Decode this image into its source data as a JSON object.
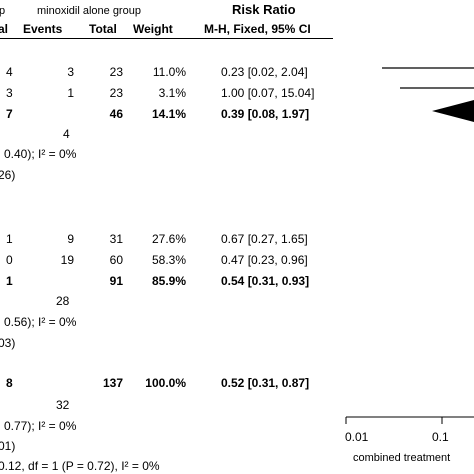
{
  "header": {
    "group_label": "minoxidil alone group",
    "left_fragment": "p",
    "col_left_fragment": "al",
    "col_events": "Events",
    "col_total": "Total",
    "col_weight": "Weight",
    "risk_ratio": "Risk Ratio",
    "method": "M-H, Fixed, 95% CI"
  },
  "subgroup1": {
    "rows": [
      {
        "left": "4",
        "events": "3",
        "total": "23",
        "weight": "11.0%",
        "ci": "0.23 [0.02, 2.04]"
      },
      {
        "left": "3",
        "events": "1",
        "total": "23",
        "weight": "3.1%",
        "ci": "1.00 [0.07, 15.04]"
      }
    ],
    "subtotal": {
      "left": "7",
      "total": "46",
      "weight": "14.1%",
      "ci": "0.39 [0.08, 1.97]"
    },
    "events_total": "4",
    "het": "0.40); I² = 0%",
    "effect": "26)"
  },
  "subgroup2": {
    "rows": [
      {
        "left": "1",
        "events": "9",
        "total": "31",
        "weight": "27.6%",
        "ci": "0.67 [0.27, 1.65]"
      },
      {
        "left": "0",
        "events": "19",
        "total": "60",
        "weight": "58.3%",
        "ci": "0.47 [0.23, 0.96]"
      }
    ],
    "subtotal": {
      "left": "1",
      "total": "91",
      "weight": "85.9%",
      "ci": "0.54 [0.31, 0.93]"
    },
    "events_total": "28",
    "het": "0.56); I² = 0%",
    "effect": "03)"
  },
  "overall": {
    "left": "8",
    "total": "137",
    "weight": "100.0%",
    "ci": "0.52 [0.31, 0.87]",
    "events_total": "32",
    "het": "0.77); I² = 0%",
    "effect": "01)",
    "subgroup_diff": "0.12, df = 1 (P = 0.72), I² = 0%"
  },
  "axis": {
    "ticks": [
      "0.01",
      "0.1"
    ],
    "label": "combined treatment"
  }
}
